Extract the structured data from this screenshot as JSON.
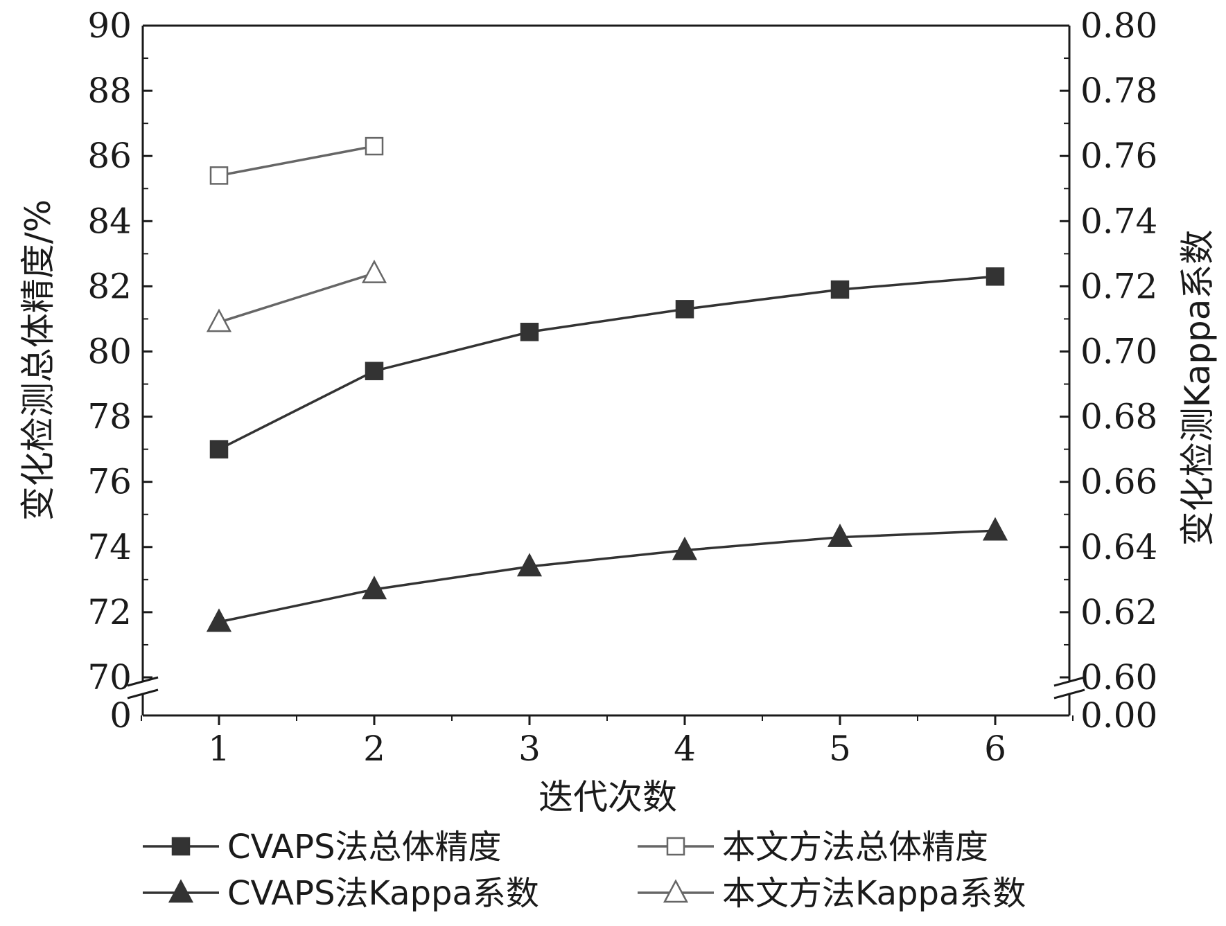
{
  "chart_data": {
    "type": "line",
    "xlabel": "迭代次数",
    "ylabel_left": "变化检测总体精度/%",
    "ylabel_right": "变化检测Kappa系数",
    "x": [
      1,
      2,
      3,
      4,
      5,
      6
    ],
    "x_ticks": [
      "1",
      "2",
      "3",
      "4",
      "5",
      "6"
    ],
    "ylim_left": [
      70,
      90
    ],
    "ylim_right": [
      0.6,
      0.8
    ],
    "y_ticks_left": [
      "90",
      "88",
      "86",
      "84",
      "82",
      "80",
      "78",
      "76",
      "74",
      "72",
      "70"
    ],
    "y_ticks_right": [
      "0.80",
      "0.78",
      "0.76",
      "0.74",
      "0.72",
      "0.70",
      "0.68",
      "0.66",
      "0.64",
      "0.62",
      "0.60"
    ],
    "y_zero_left": "0",
    "y_zero_right": "0.00",
    "axis_break": true,
    "grid": false,
    "legend_position": "bottom",
    "series": [
      {
        "name": "CVAPS法总体精度",
        "axis": "left",
        "marker": "filled-square",
        "color": "#333333",
        "x": [
          1,
          2,
          3,
          4,
          5,
          6
        ],
        "values": [
          77.0,
          79.4,
          80.6,
          81.3,
          81.9,
          82.3
        ]
      },
      {
        "name": "本文方法总体精度",
        "axis": "left",
        "marker": "open-square",
        "color": "#666666",
        "x": [
          1,
          2
        ],
        "values": [
          85.4,
          86.3
        ]
      },
      {
        "name": "CVAPS法Kappa系数",
        "axis": "right",
        "marker": "filled-triangle",
        "color": "#333333",
        "x": [
          1,
          2,
          3,
          4,
          5,
          6
        ],
        "values": [
          0.617,
          0.627,
          0.634,
          0.639,
          0.643,
          0.645
        ]
      },
      {
        "name": "本文方法Kappa系数",
        "axis": "right",
        "marker": "open-triangle",
        "color": "#666666",
        "x": [
          1,
          2
        ],
        "values": [
          0.709,
          0.724
        ]
      }
    ]
  }
}
